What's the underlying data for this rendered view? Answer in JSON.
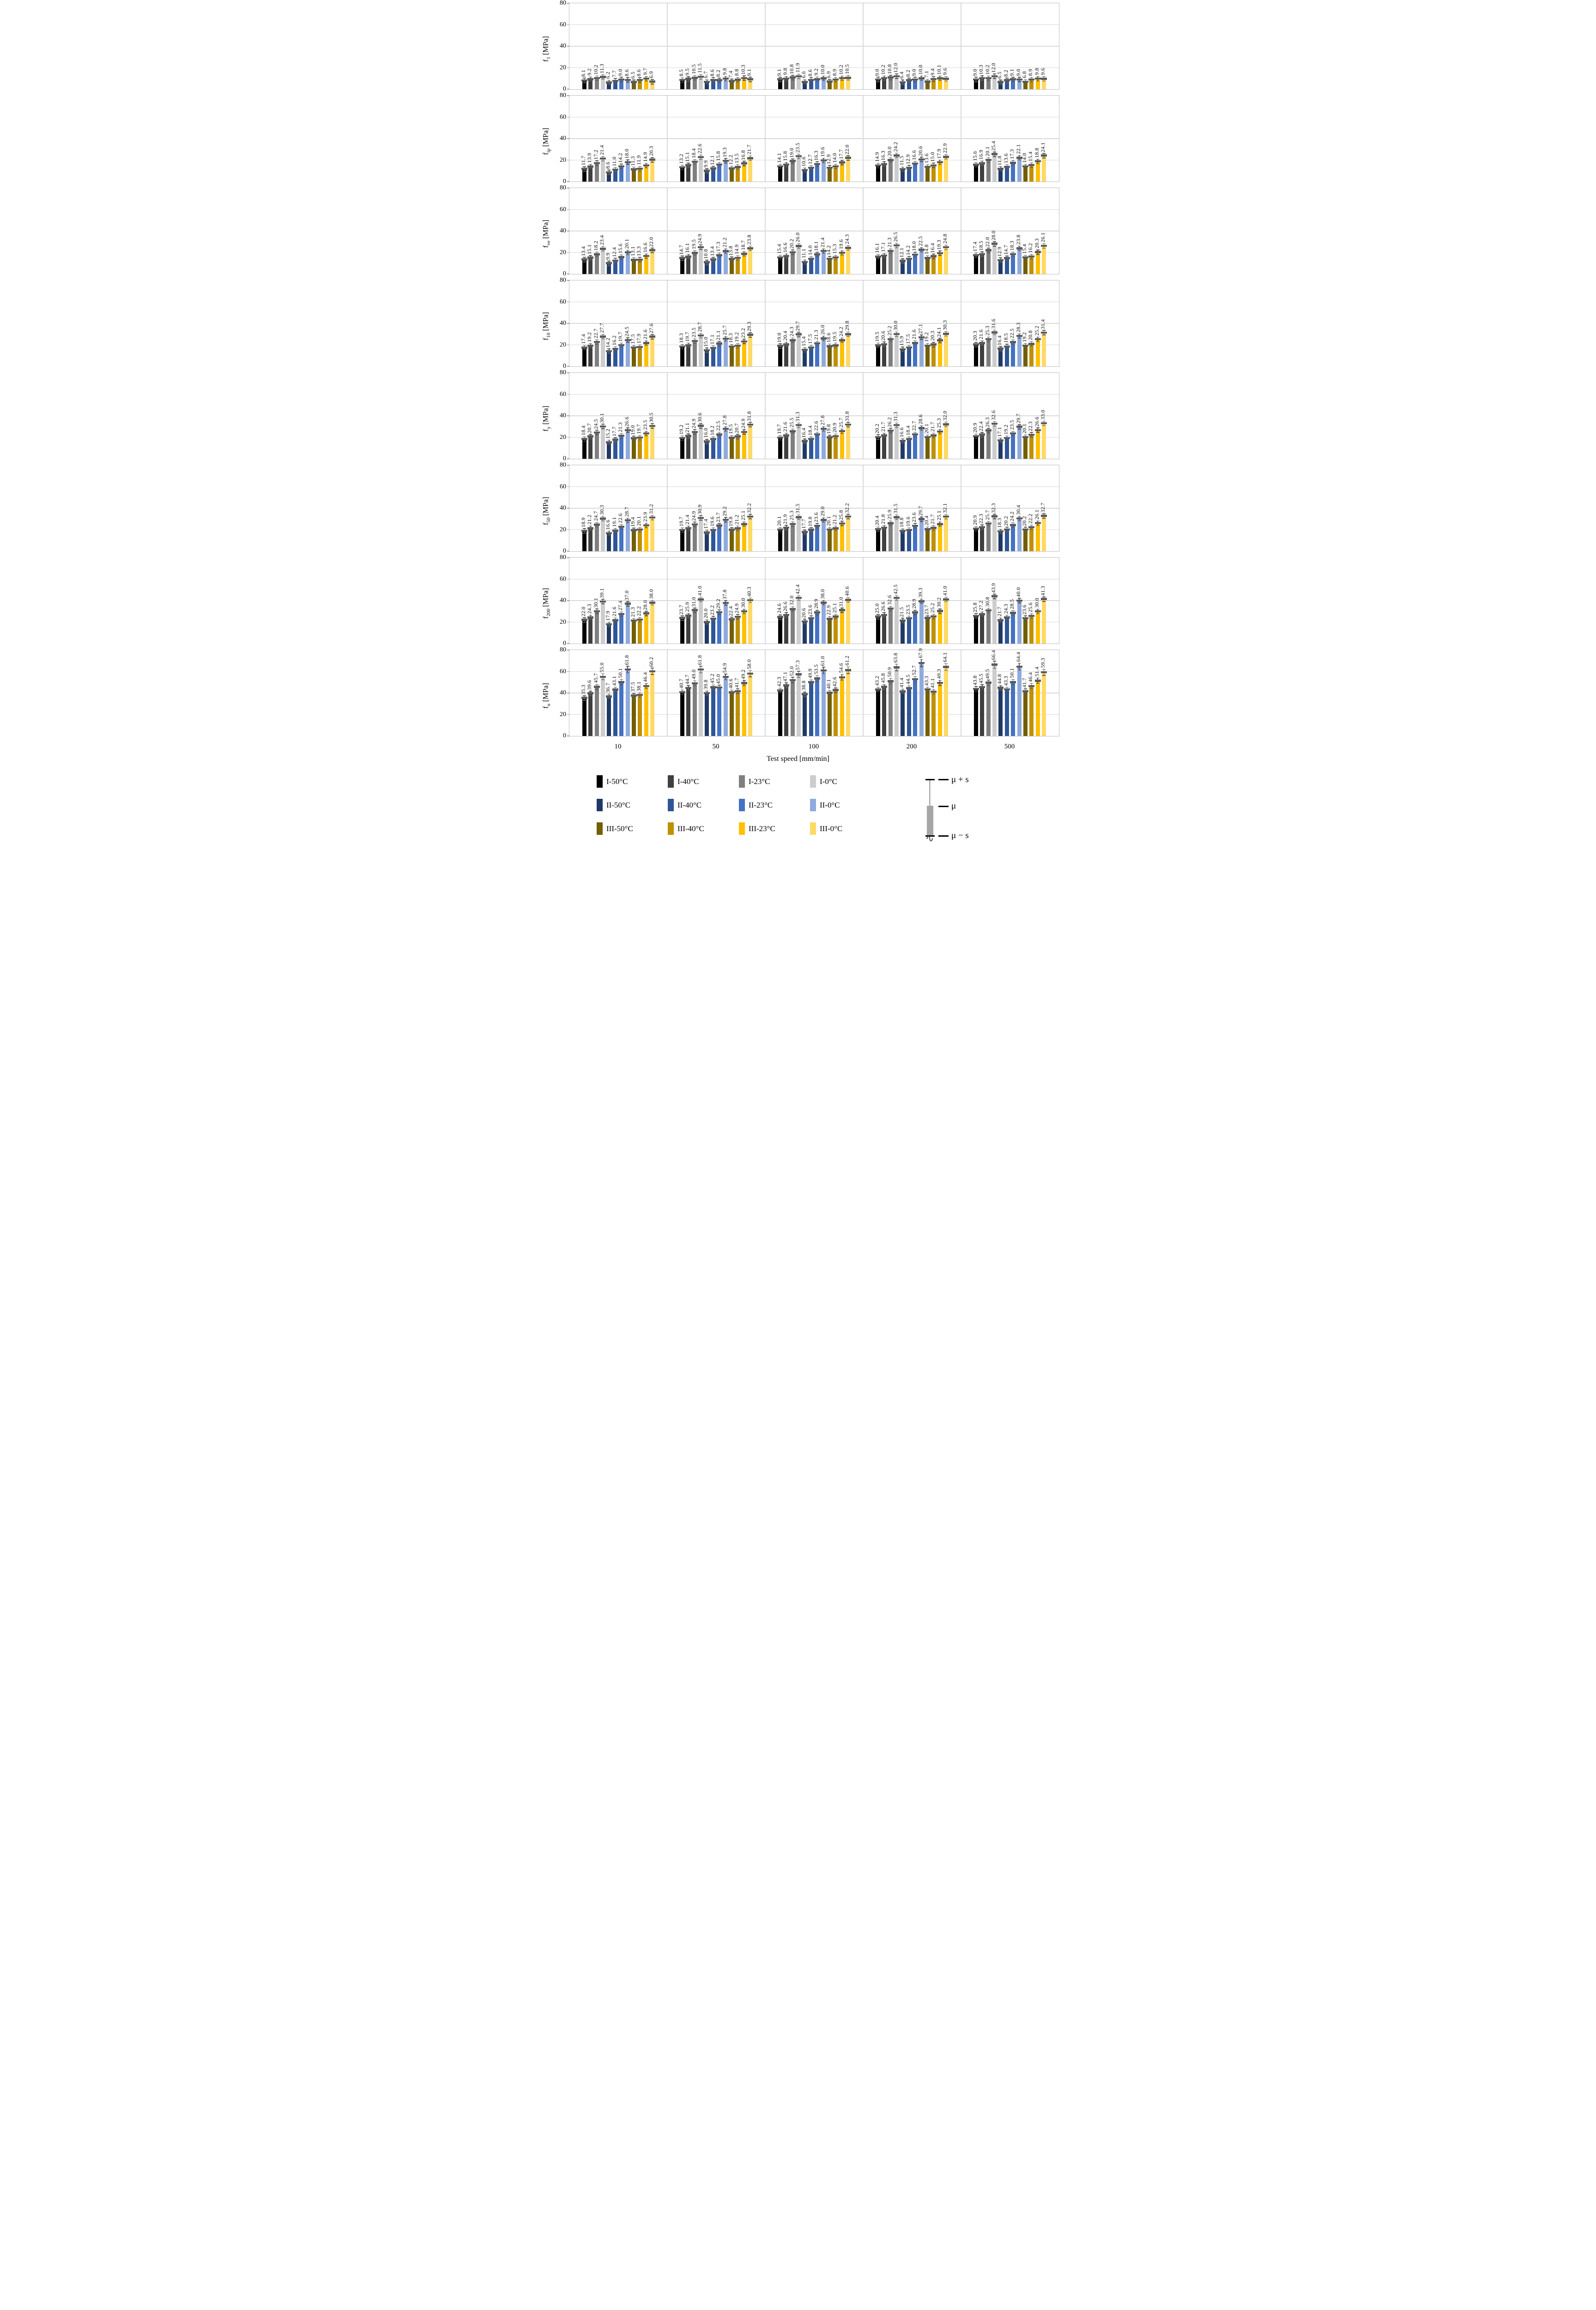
{
  "chart_data": {
    "type": "bar",
    "title": "",
    "xlabel": "Test speed [mm/min]",
    "categories": [
      "10",
      "50",
      "100",
      "200",
      "500"
    ],
    "ylim": [
      0,
      80
    ],
    "yticks": [
      0,
      20,
      40,
      60,
      80
    ],
    "grid": "horizontal, light gray, every 20 MPa; panels outlined light gray",
    "legend_position": "bottom",
    "series": [
      {
        "name": "I-50°C",
        "color": "#000000"
      },
      {
        "name": "I-40°C",
        "color": "#3f3f3f"
      },
      {
        "name": "I-23°C",
        "color": "#7f7f7f"
      },
      {
        "name": "I-0°C",
        "color": "#cdcdcd"
      },
      {
        "name": "II-50°C",
        "color": "#203864"
      },
      {
        "name": "II-40°C",
        "color": "#2f5597"
      },
      {
        "name": "II-23°C",
        "color": "#4472c4"
      },
      {
        "name": "II-0°C",
        "color": "#8faadc"
      },
      {
        "name": "III-50°C",
        "color": "#735e00"
      },
      {
        "name": "III-40°C",
        "color": "#bf9000"
      },
      {
        "name": "III-23°C",
        "color": "#ffc000"
      },
      {
        "name": "III-0°C",
        "color": "#ffd966"
      }
    ],
    "panels": [
      {
        "id": "f1",
        "ylabel_base": "f",
        "ylabel_sub": "1",
        "ylabel_unit": " [MPa]",
        "groups": [
          [
            8.1,
            9.2,
            10.2,
            11.3,
            6.2,
            7.7,
            9.0,
            8.6,
            6.5,
            8.6,
            9.7,
            6.9
          ],
          [
            8.5,
            9.5,
            10.5,
            11.5,
            6.7,
            8.6,
            8.2,
            9.8,
            7.4,
            8.8,
            10.3,
            9.1
          ],
          [
            9.1,
            9.8,
            10.8,
            11.9,
            6.6,
            8.6,
            9.2,
            10.0,
            6.9,
            8.9,
            10.2,
            10.5
          ],
          [
            9.0,
            10.2,
            10.8,
            12.0,
            6.4,
            8.2,
            9.0,
            10.0,
            7.1,
            9.4,
            10.1,
            9.6
          ],
          [
            9.0,
            10.3,
            10.2,
            12.0,
            6.5,
            8.2,
            9.1,
            9.0,
            6.8,
            8.9,
            9.8,
            9.6
          ]
        ]
      },
      {
        "id": "fip",
        "ylabel_base": "f",
        "ylabel_sub": "ip",
        "ylabel_unit": " [MPa]",
        "groups": [
          [
            11.7,
            13.9,
            17.2,
            21.4,
            8.6,
            11.0,
            14.2,
            18.0,
            11.3,
            11.9,
            14.9,
            20.3
          ],
          [
            13.2,
            15.1,
            18.4,
            22.6,
            9.9,
            12.1,
            15.8,
            19.3,
            12.2,
            13.5,
            16.8,
            21.7
          ],
          [
            14.1,
            15.8,
            19.0,
            23.5,
            10.6,
            12.7,
            16.3,
            19.6,
            12.9,
            14.0,
            17.7,
            22.0
          ],
          [
            14.9,
            16.3,
            20.0,
            24.2,
            11.5,
            12.9,
            16.6,
            20.6,
            13.6,
            15.0,
            17.9,
            22.9
          ],
          [
            15.6,
            16.9,
            20.1,
            25.4,
            11.8,
            13.6,
            17.3,
            22.1,
            14.0,
            15.4,
            18.8,
            24.1
          ]
        ]
      },
      {
        "id": "fve",
        "ylabel_base": "f",
        "ylabel_sub": "ve",
        "ylabel_unit": " [MPa]",
        "groups": [
          [
            13.4,
            15.1,
            18.2,
            23.4,
            9.9,
            12.4,
            15.6,
            20.1,
            13.1,
            13.3,
            16.6,
            22.0
          ],
          [
            14.7,
            16.1,
            19.5,
            24.9,
            10.8,
            13.4,
            17.3,
            21.2,
            13.8,
            14.9,
            18.7,
            23.8
          ],
          [
            15.4,
            16.6,
            20.2,
            26.0,
            11.1,
            14.0,
            18.1,
            21.4,
            14.2,
            15.3,
            19.6,
            24.3
          ],
          [
            16.1,
            17.1,
            21.3,
            26.5,
            12.1,
            14.2,
            18.0,
            22.5,
            14.8,
            16.4,
            19.3,
            24.8
          ],
          [
            17.4,
            18.5,
            22.0,
            28.0,
            12.9,
            14.7,
            18.3,
            23.8,
            15.4,
            16.2,
            20.3,
            26.1
          ]
        ]
      },
      {
        "id": "f10",
        "ylabel_base": "f",
        "ylabel_sub": "10",
        "ylabel_unit": " [MPa]",
        "groups": [
          [
            17.4,
            19.2,
            22.7,
            27.7,
            14.2,
            16.2,
            19.7,
            24.5,
            17.5,
            17.9,
            21.6,
            27.6
          ],
          [
            18.3,
            19.7,
            23.5,
            28.7,
            15.0,
            17.1,
            21.1,
            25.7,
            18.3,
            19.2,
            23.2,
            29.3
          ],
          [
            19.0,
            20.4,
            24.3,
            29.7,
            15.4,
            17.5,
            21.3,
            26.0,
            18.6,
            19.5,
            24.2,
            29.8
          ],
          [
            19.5,
            20.6,
            25.2,
            30.0,
            15.9,
            17.5,
            21.6,
            27.1,
            19.2,
            20.3,
            24.1,
            30.3
          ],
          [
            20.3,
            21.6,
            25.3,
            31.6,
            16.4,
            18.5,
            22.5,
            28.3,
            19.2,
            20.8,
            25.2,
            31.4
          ]
        ]
      },
      {
        "id": "fy",
        "ylabel_base": "f",
        "ylabel_sub": "y",
        "ylabel_unit": " [MPa]",
        "groups": [
          [
            18.4,
            20.7,
            24.5,
            30.1,
            15.2,
            17.7,
            21.3,
            26.6,
            19.0,
            19.7,
            23.5,
            30.5
          ],
          [
            19.2,
            21.1,
            24.9,
            30.6,
            16.0,
            18.2,
            22.5,
            27.8,
            19.5,
            20.7,
            24.9,
            31.8
          ],
          [
            19.7,
            21.6,
            25.5,
            31.3,
            16.4,
            18.4,
            22.6,
            27.8,
            19.8,
            20.9,
            25.7,
            31.8
          ],
          [
            20.2,
            21.7,
            26.2,
            31.3,
            16.6,
            18.4,
            22.7,
            28.6,
            20.1,
            21.7,
            25.3,
            32.0
          ],
          [
            20.9,
            22.4,
            26.3,
            32.6,
            17.1,
            19.2,
            23.5,
            29.7,
            20.1,
            22.3,
            26.6,
            33.0
          ]
        ]
      },
      {
        "id": "f50",
        "ylabel_base": "f",
        "ylabel_sub": "50",
        "ylabel_unit": " [MPa]",
        "groups": [
          [
            18.9,
            21.2,
            24.7,
            30.3,
            16.6,
            19.1,
            22.6,
            28.7,
            19.4,
            20.1,
            23.9,
            31.2
          ],
          [
            19.7,
            21.4,
            24.9,
            30.9,
            17.4,
            19.6,
            23.7,
            29.2,
            19.8,
            21.2,
            25.1,
            32.2
          ],
          [
            20.1,
            21.9,
            25.3,
            31.5,
            17.7,
            19.8,
            23.6,
            29.0,
            20.1,
            21.2,
            25.8,
            32.2
          ],
          [
            20.4,
            21.8,
            25.9,
            31.5,
            18.8,
            19.6,
            23.6,
            29.7,
            20.4,
            21.7,
            25.1,
            32.1
          ],
          [
            20.9,
            22.3,
            25.7,
            32.3,
            18.3,
            20.2,
            24.2,
            30.4,
            20.2,
            22.2,
            26.1,
            32.7
          ]
        ]
      },
      {
        "id": "f200",
        "ylabel_base": "f",
        "ylabel_sub": "200",
        "ylabel_unit": " [MPa]",
        "groups": [
          [
            22.0,
            24.3,
            30.1,
            39.1,
            17.9,
            21.6,
            27.4,
            37.0,
            21.3,
            22.2,
            28.0,
            38.0
          ],
          [
            23.7,
            25.9,
            31.0,
            41.0,
            20.0,
            23.2,
            29.2,
            37.8,
            22.4,
            24.9,
            30.0,
            40.3
          ],
          [
            24.6,
            26.6,
            32.0,
            42.4,
            20.6,
            23.6,
            28.9,
            38.0,
            22.9,
            25.1,
            31.0,
            40.6
          ],
          [
            25.0,
            26.6,
            32.6,
            42.5,
            21.5,
            23.5,
            28.9,
            39.3,
            23.7,
            25.2,
            30.2,
            41.0
          ],
          [
            25.8,
            27.2,
            30.8,
            43.9,
            21.7,
            24.3,
            28.5,
            40.0,
            23.6,
            25.6,
            30.0,
            41.3
          ]
        ]
      },
      {
        "id": "fu",
        "ylabel_base": "f",
        "ylabel_sub": "u",
        "ylabel_unit": " [MPa]",
        "groups": [
          [
            35.3,
            39.6,
            45.7,
            55.0,
            36.7,
            43.1,
            50.1,
            61.8,
            37.5,
            38.1,
            46.4,
            60.2
          ],
          [
            40.7,
            44.7,
            49.0,
            61.8,
            39.8,
            45.2,
            45.0,
            54.9,
            40.6,
            41.7,
            49.2,
            58.0
          ],
          [
            42.3,
            47.1,
            52.0,
            57.3,
            38.8,
            49.9,
            53.5,
            61.0,
            40.1,
            42.6,
            54.6,
            61.2
          ],
          [
            43.2,
            45.8,
            50.9,
            63.8,
            41.4,
            44.5,
            52.7,
            67.9,
            43.3,
            41.1,
            49.3,
            64.1
          ],
          [
            43.8,
            45.5,
            49.5,
            66.4,
            44.8,
            43.3,
            50.1,
            64.4,
            41.7,
            46.4,
            51.4,
            59.3
          ]
        ]
      }
    ],
    "errorbar_legend": {
      "top": "μ + s",
      "mid": "μ",
      "bottom": "μ − s"
    }
  }
}
